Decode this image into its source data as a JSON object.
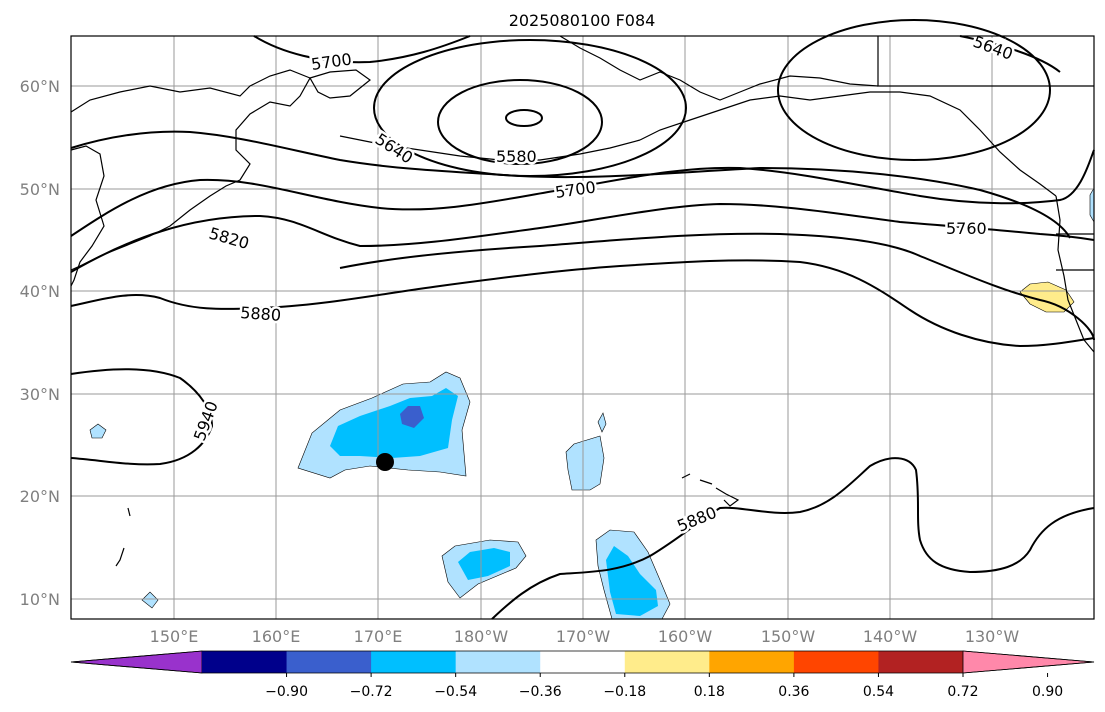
{
  "title": "2025080100 F084",
  "lat_labels": [
    "60°N",
    "50°N",
    "40°N",
    "30°N",
    "20°N",
    "10°N"
  ],
  "lon_labels": [
    "150°E",
    "160°E",
    "170°E",
    "180°W",
    "170°W",
    "160°W",
    "150°W",
    "140°W",
    "130°W"
  ],
  "contour_labels": [
    "5700",
    "5640",
    "5580",
    "5700",
    "5640",
    "5820",
    "5760",
    "5880",
    "5940",
    "5880"
  ],
  "colorbar": {
    "ticks": [
      "−0.90",
      "−0.72",
      "−0.54",
      "−0.36",
      "−0.18",
      "0.18",
      "0.36",
      "0.54",
      "0.72",
      "0.90"
    ],
    "colors": [
      "#9932cc",
      "#00008b",
      "#3a5fcd",
      "#00bfff",
      "#b0e2ff",
      "#ffffff",
      "#ffec8b",
      "#ffa500",
      "#ff4500",
      "#b22222",
      "#ff88aa"
    ]
  },
  "marker": {
    "label": "point marker",
    "color": "#000000"
  }
}
